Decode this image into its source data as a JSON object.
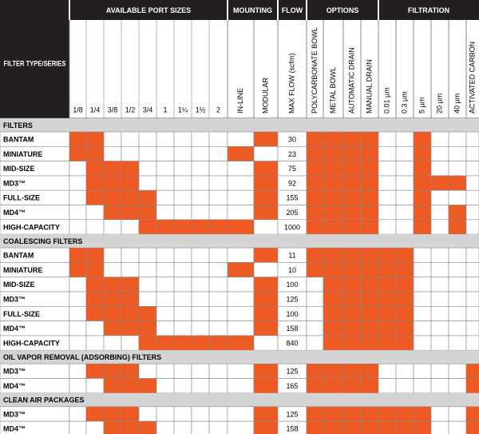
{
  "header": {
    "row_label": "FILTER TYPE/SERIES",
    "groups": [
      {
        "title": "AVAILABLE PORT SIZES",
        "vertical": false,
        "columns": [
          "1/8",
          "1/4",
          "3/8",
          "1/2",
          "3/4",
          "1",
          "1¼",
          "1½",
          "2"
        ]
      },
      {
        "title": "MOUNTING",
        "vertical": true,
        "columns": [
          "IN-LINE",
          "MODULAR"
        ]
      },
      {
        "title": "FLOW",
        "vertical": true,
        "columns": [
          "MAX FLOW (scfm)"
        ]
      },
      {
        "title": "OPTIONS",
        "vertical": true,
        "columns": [
          "POLYCARBONATE BOWL",
          "METAL BOWL",
          "AUTOMATIC DRAIN",
          "MANUAL DRAIN"
        ]
      },
      {
        "title": "FILTRATION",
        "vertical": true,
        "columns": [
          "0.01 µm",
          "0.3 µm",
          "5 µm",
          "20 µm",
          "40 µm",
          "ACTIVATED CARBON"
        ]
      }
    ]
  },
  "fill_color": "#ee5a24",
  "header_color": "#231f20",
  "section_color": "#d4d4d4",
  "sections": [
    {
      "title": "FILTERS",
      "rows": [
        {
          "label": "BANTAM",
          "cells": [
            true,
            true,
            false,
            false,
            false,
            false,
            false,
            false,
            false,
            false,
            true,
            30,
            true,
            true,
            true,
            true,
            false,
            false,
            true,
            false,
            false,
            false
          ]
        },
        {
          "label": "MINIATURE",
          "cells": [
            true,
            true,
            false,
            false,
            false,
            false,
            false,
            false,
            false,
            true,
            false,
            23,
            true,
            true,
            true,
            true,
            false,
            false,
            true,
            false,
            false,
            false
          ]
        },
        {
          "label": "MID-SIZE",
          "cells": [
            false,
            true,
            true,
            true,
            false,
            false,
            false,
            false,
            false,
            false,
            true,
            75,
            true,
            true,
            true,
            true,
            false,
            false,
            true,
            false,
            false,
            false
          ]
        },
        {
          "label": "MD3™",
          "cells": [
            false,
            true,
            true,
            true,
            false,
            false,
            false,
            false,
            false,
            false,
            true,
            92,
            true,
            true,
            true,
            true,
            false,
            false,
            true,
            true,
            true,
            false
          ]
        },
        {
          "label": "FULL-SIZE",
          "cells": [
            false,
            true,
            true,
            true,
            true,
            false,
            false,
            false,
            false,
            false,
            true,
            155,
            true,
            true,
            true,
            true,
            false,
            false,
            true,
            false,
            false,
            false
          ]
        },
        {
          "label": "MD4™",
          "cells": [
            false,
            false,
            true,
            true,
            true,
            false,
            false,
            false,
            false,
            false,
            true,
            205,
            true,
            true,
            true,
            true,
            false,
            false,
            true,
            false,
            true,
            false
          ]
        },
        {
          "label": "HIGH-CAPACITY",
          "cells": [
            false,
            false,
            false,
            false,
            true,
            true,
            true,
            true,
            true,
            true,
            false,
            1000,
            true,
            true,
            true,
            true,
            false,
            false,
            true,
            false,
            true,
            false
          ]
        }
      ]
    },
    {
      "title": "COALESCING FILTERS",
      "rows": [
        {
          "label": "BANTAM",
          "cells": [
            true,
            true,
            false,
            false,
            false,
            false,
            false,
            false,
            false,
            false,
            true,
            11,
            true,
            true,
            true,
            true,
            true,
            true,
            false,
            false,
            false,
            false
          ]
        },
        {
          "label": "MINIATURE",
          "cells": [
            true,
            true,
            false,
            false,
            false,
            false,
            false,
            false,
            false,
            true,
            false,
            10,
            true,
            true,
            true,
            true,
            true,
            true,
            false,
            false,
            false,
            false
          ]
        },
        {
          "label": "MID-SIZE",
          "cells": [
            false,
            true,
            true,
            true,
            false,
            false,
            false,
            false,
            false,
            false,
            true,
            100,
            false,
            true,
            true,
            true,
            true,
            true,
            false,
            false,
            false,
            false
          ]
        },
        {
          "label": "MD3™",
          "cells": [
            false,
            true,
            true,
            true,
            false,
            false,
            false,
            false,
            false,
            false,
            true,
            125,
            false,
            true,
            true,
            true,
            true,
            true,
            false,
            false,
            false,
            false
          ]
        },
        {
          "label": "FULL-SIZE",
          "cells": [
            false,
            true,
            true,
            true,
            true,
            false,
            false,
            false,
            false,
            false,
            true,
            100,
            false,
            true,
            true,
            true,
            true,
            true,
            false,
            false,
            false,
            false
          ]
        },
        {
          "label": "MD4™",
          "cells": [
            false,
            false,
            true,
            true,
            true,
            false,
            false,
            false,
            false,
            false,
            true,
            158,
            false,
            true,
            true,
            true,
            true,
            true,
            false,
            false,
            false,
            false
          ]
        },
        {
          "label": "HIGH-CAPACITY",
          "cells": [
            false,
            false,
            false,
            false,
            true,
            true,
            true,
            true,
            true,
            true,
            false,
            840,
            false,
            true,
            true,
            true,
            true,
            true,
            false,
            false,
            false,
            false
          ]
        }
      ]
    },
    {
      "title": "OIL VAPOR REMOVAL (ADSORBING) FILTERS",
      "rows": [
        {
          "label": "MD3™",
          "cells": [
            false,
            true,
            true,
            true,
            false,
            false,
            false,
            false,
            false,
            false,
            true,
            125,
            true,
            true,
            true,
            true,
            false,
            false,
            false,
            false,
            false,
            true
          ]
        },
        {
          "label": "MD4™",
          "cells": [
            false,
            false,
            true,
            true,
            true,
            false,
            false,
            false,
            false,
            false,
            true,
            165,
            true,
            true,
            true,
            true,
            false,
            false,
            false,
            false,
            false,
            true
          ]
        }
      ]
    },
    {
      "title": "CLEAN AIR PACKAGES",
      "rows": [
        {
          "label": "MD3™",
          "cells": [
            false,
            true,
            true,
            true,
            false,
            false,
            false,
            false,
            false,
            false,
            true,
            125,
            true,
            true,
            true,
            true,
            true,
            true,
            true,
            false,
            false,
            true
          ]
        },
        {
          "label": "MD4™",
          "cells": [
            false,
            false,
            true,
            true,
            true,
            false,
            false,
            false,
            false,
            false,
            true,
            158,
            true,
            true,
            true,
            true,
            true,
            true,
            true,
            false,
            false,
            true
          ]
        }
      ]
    }
  ]
}
